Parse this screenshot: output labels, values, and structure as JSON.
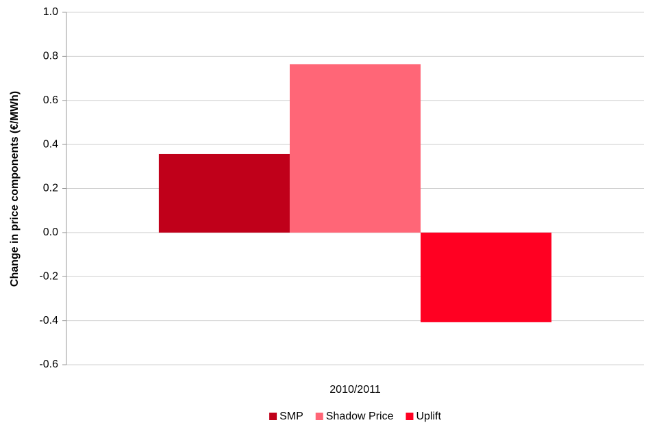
{
  "chart_data": {
    "type": "bar",
    "y_axis_label": "Change in price components (€/MWh)",
    "categories": [
      "2010/2011"
    ],
    "series": [
      {
        "name": "SMP",
        "color": "#c0001a",
        "values": [
          0.357
        ]
      },
      {
        "name": "Shadow Price",
        "color": "#ff6677",
        "values": [
          0.764
        ]
      },
      {
        "name": "Uplift",
        "color": "#ff0022",
        "values": [
          -0.407
        ]
      }
    ],
    "ylim": [
      -0.6,
      1.0
    ],
    "yticks": [
      -0.6,
      -0.4,
      -0.2,
      {
        "value": 0,
        "label": "0.0"
      },
      0.2,
      0.4,
      0.6,
      0.8,
      {
        "value": 1,
        "label": "1.0"
      }
    ],
    "grid": true,
    "legend": "bottom"
  }
}
